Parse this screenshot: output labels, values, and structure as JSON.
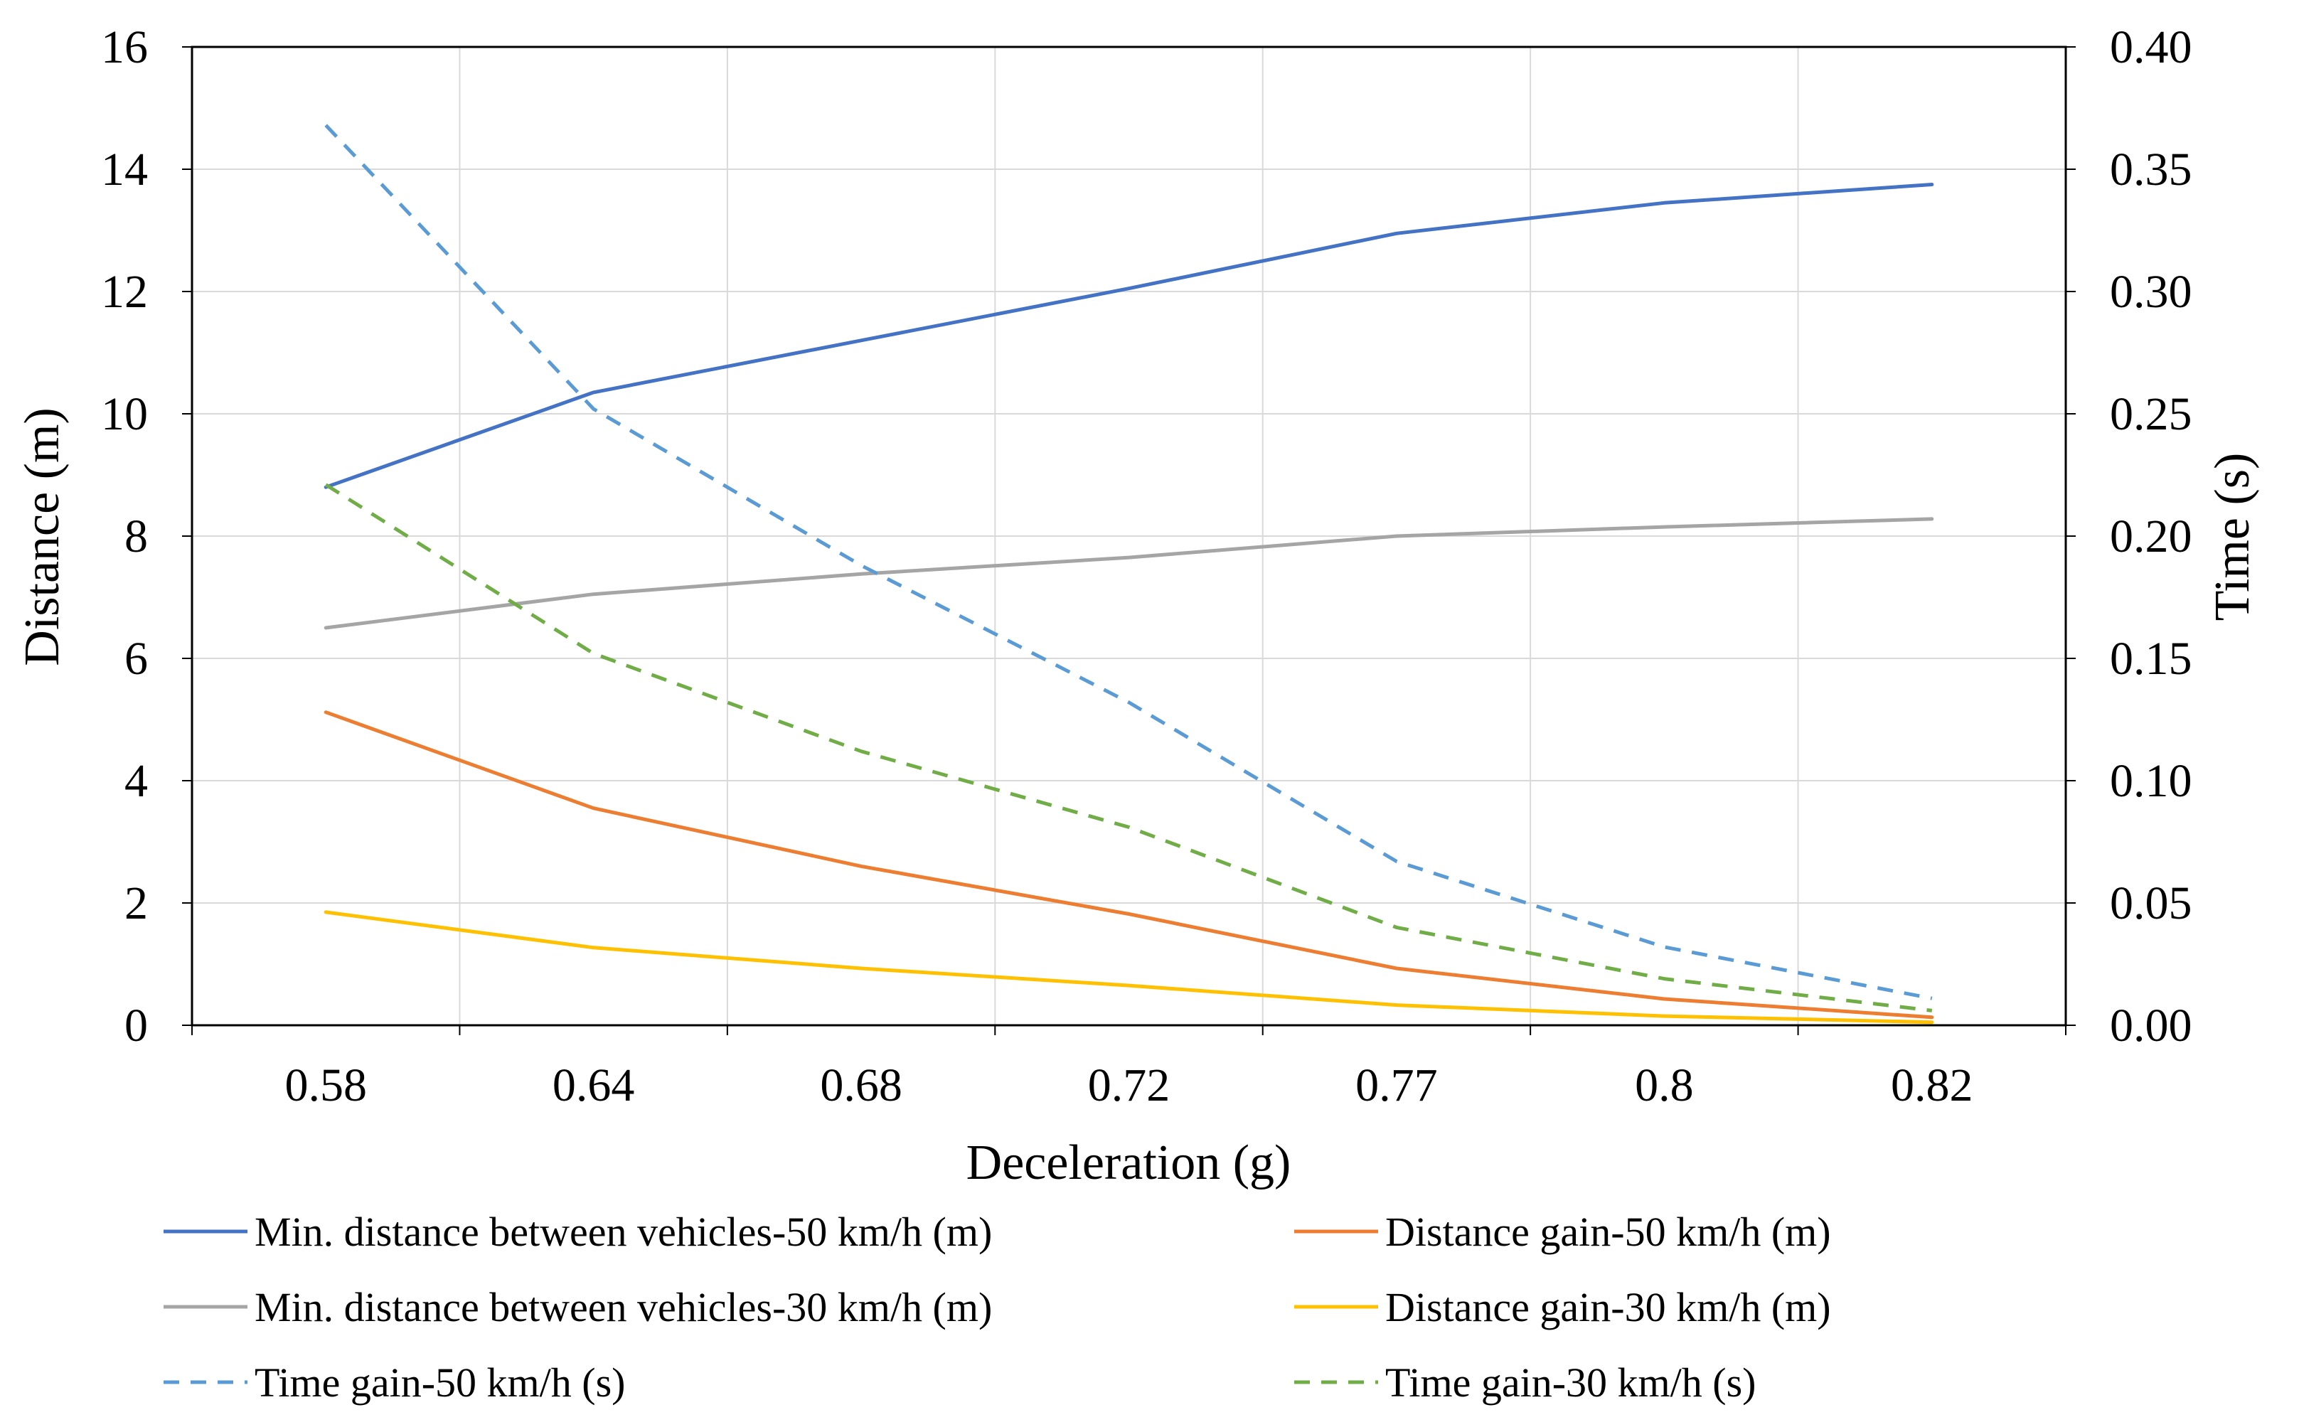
{
  "chart_data": {
    "type": "line",
    "title": "",
    "xlabel": "Deceleration (g)",
    "ylabel_left": "Distance (m)",
    "ylabel_right": "Time (s)",
    "categories": [
      "0.58",
      "0.64",
      "0.68",
      "0.72",
      "0.77",
      "0.8",
      "0.82"
    ],
    "ylim_left": [
      0,
      16
    ],
    "yticks_left": [
      "0",
      "2",
      "4",
      "6",
      "8",
      "10",
      "12",
      "14",
      "16"
    ],
    "ylim_right": [
      0,
      0.4
    ],
    "yticks_right": [
      "0.00",
      "0.05",
      "0.10",
      "0.15",
      "0.20",
      "0.25",
      "0.30",
      "0.35",
      "0.40"
    ],
    "grid": true,
    "legend_position": "bottom",
    "series": [
      {
        "name": "Min. distance between vehicles-50 km/h (m)",
        "axis": "left",
        "color": "#4472C4",
        "dash": false,
        "values": [
          8.8,
          10.35,
          11.2,
          12.05,
          12.95,
          13.45,
          13.75
        ]
      },
      {
        "name": "Distance gain-50 km/h (m)",
        "axis": "left",
        "color": "#ED7D31",
        "dash": false,
        "values": [
          5.12,
          3.55,
          2.6,
          1.82,
          0.93,
          0.43,
          0.13
        ]
      },
      {
        "name": "Min. distance between vehicles-30 km/h (m)",
        "axis": "left",
        "color": "#A5A5A5",
        "dash": false,
        "values": [
          6.5,
          7.05,
          7.38,
          7.65,
          8.0,
          8.15,
          8.28
        ]
      },
      {
        "name": "Distance gain-30 km/h (m)",
        "axis": "left",
        "color": "#FFC000",
        "dash": false,
        "values": [
          1.85,
          1.27,
          0.93,
          0.65,
          0.33,
          0.15,
          0.05
        ]
      },
      {
        "name": "Time gain-50 km/h (s)",
        "axis": "right",
        "color": "#5B9BD5",
        "dash": true,
        "values": [
          0.368,
          0.252,
          0.188,
          0.132,
          0.067,
          0.032,
          0.011
        ]
      },
      {
        "name": "Time gain-30 km/h (s)",
        "axis": "right",
        "color": "#70AD47",
        "dash": true,
        "values": [
          0.221,
          0.152,
          0.112,
          0.081,
          0.04,
          0.019,
          0.006
        ]
      }
    ]
  }
}
